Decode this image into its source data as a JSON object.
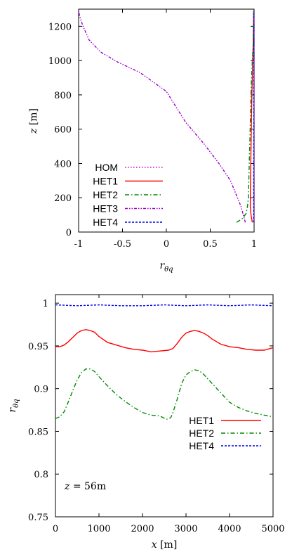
{
  "chart_data": [
    {
      "type": "line",
      "xlabel": "r_θq",
      "ylabel": "z [m]",
      "xlim": [
        -1,
        1
      ],
      "ylim": [
        0,
        1300
      ],
      "xticks": [
        -1,
        -0.5,
        0,
        0.5,
        1
      ],
      "yticks": [
        0,
        200,
        400,
        600,
        800,
        1000,
        1200
      ],
      "xtick_labels": [
        "-1",
        "-0.5",
        "0",
        "0.5",
        "1"
      ],
      "ytick_labels": [
        "0",
        "200",
        "400",
        "600",
        "800",
        "1000",
        "1200"
      ],
      "legend_position": "bottom-left",
      "grid": false,
      "series": [
        {
          "name": "HOM",
          "color": "#cc00cc",
          "dash": "dotted",
          "x": [
            1,
            1,
            1,
            1,
            1,
            1,
            1,
            1
          ],
          "y": [
            56,
            200,
            400,
            600,
            800,
            1000,
            1200,
            1290
          ]
        },
        {
          "name": "HET1",
          "color": "#ff0000",
          "dash": "solid",
          "x": [
            0.98,
            0.965,
            0.957,
            0.958,
            0.962,
            0.968,
            0.974,
            0.98,
            0.985,
            0.99,
            0.993,
            0.995
          ],
          "y": [
            56,
            100,
            150,
            250,
            400,
            600,
            800,
            900,
            1000,
            1100,
            1200,
            1290
          ]
        },
        {
          "name": "HET2",
          "color": "#008800",
          "dash": "dashdot",
          "x": [
            0.8,
            0.87,
            0.91,
            0.925,
            0.935,
            0.94,
            0.945,
            0.95,
            0.955,
            0.96,
            0.965,
            0.97,
            0.98,
            0.99,
            0.995
          ],
          "y": [
            56,
            80,
            110,
            150,
            200,
            300,
            400,
            500,
            600,
            700,
            800,
            900,
            1000,
            1100,
            1290
          ]
        },
        {
          "name": "HET3",
          "color": "#9900cc",
          "dash": "dashdotdot",
          "x": [
            0.9,
            0.85,
            0.73,
            0.6,
            0.42,
            0.22,
            0.0,
            -0.3,
            -0.55,
            -0.75,
            -0.88,
            -0.95,
            -0.99,
            -1.0
          ],
          "y": [
            56,
            150,
            300,
            400,
            520,
            640,
            820,
            930,
            990,
            1050,
            1120,
            1200,
            1260,
            1300
          ]
        },
        {
          "name": "HET4",
          "color": "#0000ee",
          "dash": "dashed",
          "x": [
            0.995,
            0.995,
            0.996,
            0.997,
            0.997,
            0.998,
            0.998,
            0.998
          ],
          "y": [
            56,
            200,
            400,
            600,
            800,
            1000,
            1200,
            1290
          ]
        }
      ]
    },
    {
      "type": "line",
      "xlabel": "x [m]",
      "ylabel": "r_θq",
      "xlim": [
        0,
        5000
      ],
      "ylim": [
        0.75,
        1.01
      ],
      "xticks": [
        0,
        1000,
        2000,
        3000,
        4000,
        5000
      ],
      "yticks": [
        0.75,
        0.8,
        0.85,
        0.9,
        0.95,
        1
      ],
      "xtick_labels": [
        "0",
        "1000",
        "2000",
        "3000",
        "4000",
        "5000"
      ],
      "ytick_labels": [
        "0.75",
        "0.8",
        "0.85",
        "0.9",
        "0.95",
        "1"
      ],
      "legend_position": "center-right",
      "grid": false,
      "annotation": "z = 56m",
      "series": [
        {
          "name": "HET1",
          "color": "#ff0000",
          "dash": "solid",
          "x": [
            0,
            100,
            200,
            300,
            400,
            500,
            600,
            700,
            800,
            900,
            1000,
            1200,
            1400,
            1600,
            1800,
            2000,
            2200,
            2400,
            2600,
            2700,
            2800,
            2900,
            3000,
            3100,
            3200,
            3300,
            3400,
            3500,
            3600,
            3800,
            4000,
            4200,
            4400,
            4600,
            4800,
            5000
          ],
          "y": [
            0.949,
            0.949,
            0.951,
            0.955,
            0.96,
            0.965,
            0.968,
            0.969,
            0.968,
            0.966,
            0.961,
            0.954,
            0.951,
            0.948,
            0.946,
            0.945,
            0.943,
            0.944,
            0.945,
            0.947,
            0.953,
            0.96,
            0.965,
            0.967,
            0.968,
            0.967,
            0.965,
            0.962,
            0.958,
            0.952,
            0.949,
            0.948,
            0.946,
            0.945,
            0.945,
            0.948
          ]
        },
        {
          "name": "HET2",
          "color": "#008800",
          "dash": "dashdot",
          "x": [
            0,
            100,
            200,
            300,
            400,
            500,
            600,
            700,
            800,
            900,
            1000,
            1200,
            1400,
            1600,
            1800,
            2000,
            2200,
            2400,
            2550,
            2650,
            2700,
            2800,
            2900,
            3000,
            3100,
            3200,
            3300,
            3400,
            3600,
            3800,
            4000,
            4200,
            4400,
            4600,
            4800,
            5000
          ],
          "y": [
            0.865,
            0.867,
            0.873,
            0.885,
            0.898,
            0.91,
            0.919,
            0.923,
            0.923,
            0.92,
            0.914,
            0.903,
            0.893,
            0.885,
            0.878,
            0.872,
            0.869,
            0.868,
            0.864,
            0.866,
            0.872,
            0.888,
            0.906,
            0.916,
            0.92,
            0.922,
            0.921,
            0.917,
            0.906,
            0.895,
            0.884,
            0.878,
            0.874,
            0.871,
            0.869,
            0.867
          ]
        },
        {
          "name": "HET4",
          "color": "#0000ee",
          "dash": "dashed",
          "x": [
            0,
            500,
            1000,
            1500,
            2000,
            2500,
            3000,
            3500,
            4000,
            4500,
            5000
          ],
          "y": [
            0.998,
            0.997,
            0.998,
            0.997,
            0.997,
            0.998,
            0.997,
            0.998,
            0.997,
            0.998,
            0.997
          ]
        }
      ]
    }
  ]
}
